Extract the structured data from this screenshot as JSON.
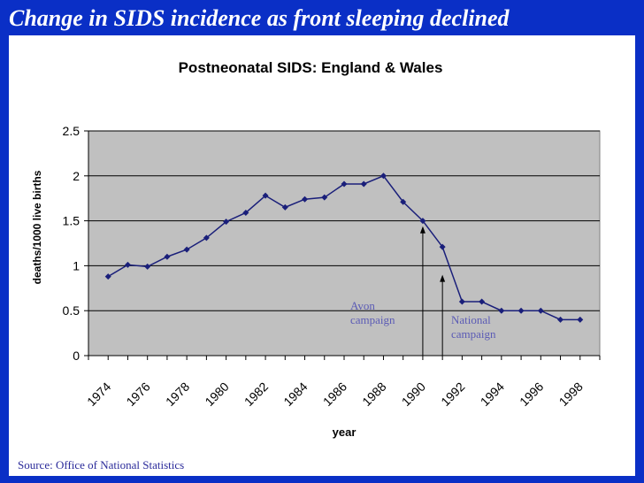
{
  "slide": {
    "title": "Change in SIDS incidence as front sleeping declined",
    "source": "Source: Office of National Statistics"
  },
  "colors": {
    "background": "#0a2fc6",
    "plot_area": "#c0c0c0",
    "line": "#1a1f7a",
    "annotation": "#5b5bb5"
  },
  "chart_data": {
    "type": "line",
    "title": "Postneonatal SIDS: England & Wales",
    "xlabel": "year",
    "ylabel": "deaths/1000 live births",
    "ylim": [
      0,
      2.5
    ],
    "yticks": [
      "0",
      "0.5",
      "1",
      "1.5",
      "2",
      "2.5"
    ],
    "xlim": [
      1973,
      1999
    ],
    "xticks": [
      "1974",
      "1976",
      "1978",
      "1980",
      "1982",
      "1984",
      "1986",
      "1988",
      "1990",
      "1992",
      "1994",
      "1996",
      "1998"
    ],
    "grid": true,
    "series": [
      {
        "x": [
          1974,
          1975,
          1976,
          1977,
          1978,
          1979,
          1980,
          1981,
          1982,
          1983,
          1984,
          1985,
          1986,
          1987,
          1988,
          1989,
          1990,
          1991,
          1992,
          1993,
          1994,
          1995,
          1996,
          1997,
          1998
        ],
        "values": [
          0.88,
          1.01,
          0.99,
          1.1,
          1.18,
          1.31,
          1.49,
          1.59,
          1.78,
          1.65,
          1.74,
          1.76,
          1.91,
          1.91,
          2.0,
          1.71,
          1.5,
          1.21,
          0.6,
          0.6,
          0.5,
          0.5,
          0.5,
          0.4,
          0.4
        ]
      }
    ],
    "annotations": [
      {
        "label_lines": [
          "Avon",
          "campaign"
        ],
        "x": 1990.0,
        "arrow_to": 1.42
      },
      {
        "label_lines": [
          "National",
          "campaign"
        ],
        "x": 1991.0,
        "arrow_to": 0.88
      }
    ]
  }
}
